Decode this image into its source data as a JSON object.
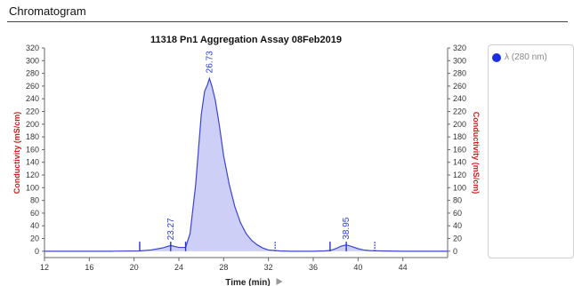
{
  "section": {
    "title": "Chromatogram"
  },
  "legend": {
    "items": [
      {
        "label": "λ (280 nm)",
        "color": "#1a2ee8"
      }
    ]
  },
  "chart_data": {
    "type": "area",
    "title": "11318 Pn1 Aggregation Assay 08Feb2019",
    "xlabel": "Time (min)",
    "ylabel": "Conductivity (mS/cm)",
    "y2label": "Conductivity (mS/cm)",
    "xlim": [
      12,
      48
    ],
    "ylim": [
      -10,
      320
    ],
    "x_ticks": [
      12,
      16,
      20,
      24,
      28,
      32,
      36,
      40,
      44
    ],
    "y_ticks": [
      0,
      20,
      40,
      60,
      80,
      100,
      120,
      140,
      160,
      180,
      200,
      220,
      240,
      260,
      280,
      300,
      320
    ],
    "grid": false,
    "legend_position": "right",
    "colors": {
      "line": "#3a44d6",
      "fill": "#c5c7f5",
      "axis_label": "#cc1f1f"
    },
    "series": [
      {
        "name": "λ (280 nm)",
        "x": [
          12,
          18,
          20.5,
          21.5,
          22.5,
          23.27,
          24,
          24.6,
          25,
          25.5,
          26,
          26.3,
          26.55,
          26.73,
          26.95,
          27.25,
          27.6,
          28,
          28.5,
          29,
          29.5,
          30,
          30.5,
          31,
          31.5,
          32,
          33,
          34,
          35,
          36,
          37,
          37.5,
          38,
          38.5,
          38.95,
          39.5,
          40,
          40.5,
          41,
          42,
          44,
          46,
          48
        ],
        "y": [
          0,
          0,
          0.5,
          2,
          5,
          9,
          6,
          6,
          28,
          105,
          215,
          252,
          262,
          272,
          260,
          238,
          200,
          150,
          105,
          70,
          45,
          28,
          17,
          10,
          5,
          2,
          0.5,
          0,
          0,
          0,
          0.5,
          1,
          4,
          8,
          10,
          7,
          4,
          2,
          1,
          0.5,
          0,
          0,
          0
        ]
      }
    ],
    "peak_labels": [
      {
        "x": 23.27,
        "label": "23.27"
      },
      {
        "x": 26.73,
        "label": "26.73"
      },
      {
        "x": 38.95,
        "label": "38.95"
      }
    ],
    "markers": [
      {
        "x": 20.5,
        "style": "solid"
      },
      {
        "x": 23.27,
        "style": "solid"
      },
      {
        "x": 24.6,
        "style": "solid"
      },
      {
        "x": 32.6,
        "style": "dotted"
      },
      {
        "x": 37.5,
        "style": "solid"
      },
      {
        "x": 38.95,
        "style": "solid"
      },
      {
        "x": 41.5,
        "style": "dotted"
      }
    ]
  }
}
